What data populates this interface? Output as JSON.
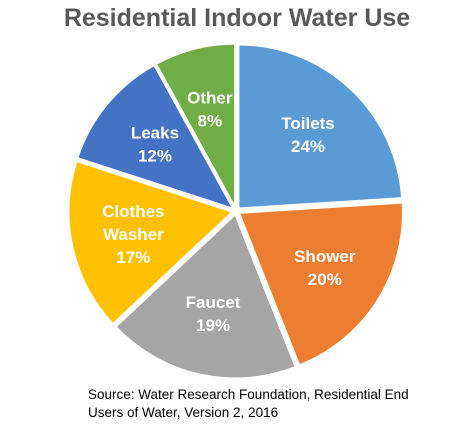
{
  "chart_data": {
    "type": "pie",
    "title": "Residential Indoor Water Use",
    "slices": [
      {
        "label": [
          "Toilets"
        ],
        "value": 24,
        "pct_label": "24%",
        "color": "#5B9BD5"
      },
      {
        "label": [
          "Shower"
        ],
        "value": 20,
        "pct_label": "20%",
        "color": "#ED7D31"
      },
      {
        "label": [
          "Faucet"
        ],
        "value": 19,
        "pct_label": "19%",
        "color": "#A5A5A5"
      },
      {
        "label": [
          "Clothes",
          "Washer"
        ],
        "value": 17,
        "pct_label": "17%",
        "color": "#FFC000"
      },
      {
        "label": [
          "Leaks"
        ],
        "value": 12,
        "pct_label": "12%",
        "color": "#4472C4"
      },
      {
        "label": [
          "Other"
        ],
        "value": 8,
        "pct_label": "8%",
        "color": "#70AD47"
      }
    ],
    "start_angle_deg": 0,
    "direction": "clockwise",
    "legend": "none",
    "label_color": "#FFFFFF"
  },
  "source": {
    "line1": "Source: Water Research Foundation, Residential End",
    "line2": "Users of Water, Version 2, 2016"
  }
}
